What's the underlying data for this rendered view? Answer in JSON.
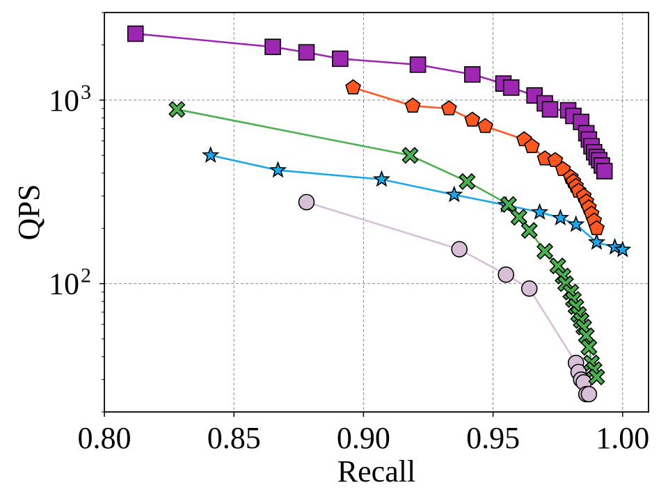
{
  "chart_data": {
    "type": "line",
    "title": "",
    "xlabel": "Recall",
    "ylabel": "QPS",
    "xlim": [
      0.8,
      1.01
    ],
    "ylim": [
      20,
      3000
    ],
    "yscale": "log",
    "grid": true,
    "x_ticks": [
      {
        "value": 0.8,
        "label": "0.80"
      },
      {
        "value": 0.85,
        "label": "0.85"
      },
      {
        "value": 0.9,
        "label": "0.90"
      },
      {
        "value": 0.95,
        "label": "0.95"
      },
      {
        "value": 1.0,
        "label": "1.00"
      }
    ],
    "y_ticks": [
      {
        "value": 100,
        "base": "10",
        "exp": "2"
      },
      {
        "value": 1000,
        "base": "10",
        "exp": "3"
      }
    ],
    "series": [
      {
        "name": "series-purple-square",
        "color": "#9C27B0",
        "marker": "square",
        "x": [
          0.812,
          0.865,
          0.878,
          0.891,
          0.921,
          0.942,
          0.954,
          0.957,
          0.966,
          0.97,
          0.972,
          0.979,
          0.981,
          0.984,
          0.986,
          0.987,
          0.988,
          0.989,
          0.99,
          0.991,
          0.992,
          0.993
        ],
        "y": [
          2300,
          1950,
          1820,
          1680,
          1560,
          1380,
          1230,
          1170,
          1060,
          960,
          890,
          880,
          820,
          760,
          660,
          610,
          560,
          520,
          490,
          470,
          440,
          410
        ]
      },
      {
        "name": "series-orange-pentagon",
        "color": "#FF5722",
        "marker": "pentagon",
        "x": [
          0.896,
          0.919,
          0.933,
          0.942,
          0.947,
          0.962,
          0.965,
          0.97,
          0.974,
          0.977,
          0.98,
          0.981,
          0.982,
          0.983,
          0.985,
          0.986,
          0.987,
          0.988,
          0.989,
          0.99
        ],
        "y": [
          1170,
          930,
          900,
          780,
          720,
          610,
          560,
          480,
          470,
          420,
          380,
          360,
          340,
          320,
          300,
          280,
          260,
          240,
          220,
          200
        ]
      },
      {
        "name": "series-green-x",
        "color": "#4CAF50",
        "marker": "x",
        "x": [
          0.828,
          0.918,
          0.94,
          0.956,
          0.96,
          0.964,
          0.97,
          0.975,
          0.977,
          0.978,
          0.98,
          0.981,
          0.982,
          0.983,
          0.984,
          0.985,
          0.986,
          0.987,
          0.988,
          0.989,
          0.99
        ],
        "y": [
          890,
          500,
          360,
          270,
          230,
          195,
          150,
          125,
          110,
          100,
          90,
          82,
          75,
          68,
          63,
          58,
          52,
          45,
          37,
          34,
          31
        ]
      },
      {
        "name": "series-blue-star",
        "color": "#1AA7EC",
        "marker": "star",
        "x": [
          0.841,
          0.867,
          0.907,
          0.935,
          0.955,
          0.968,
          0.976,
          0.982,
          0.99,
          0.997,
          1.0
        ],
        "y": [
          500,
          415,
          370,
          305,
          268,
          245,
          228,
          210,
          168,
          158,
          153
        ]
      },
      {
        "name": "series-lilac-circle",
        "color": "#D8BFD8",
        "marker": "circle",
        "x": [
          0.878,
          0.937,
          0.955,
          0.964,
          0.982,
          0.983,
          0.984,
          0.985,
          0.986,
          0.987
        ],
        "y": [
          278,
          154,
          112,
          94,
          37,
          33,
          30,
          29,
          25,
          25
        ]
      }
    ]
  }
}
